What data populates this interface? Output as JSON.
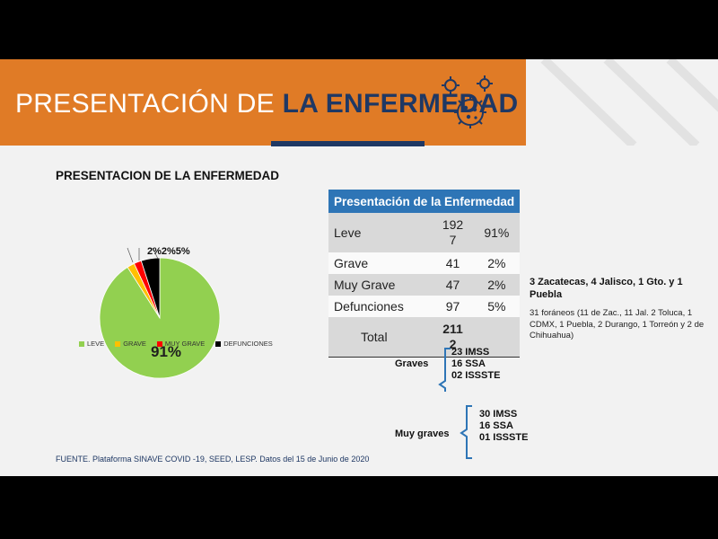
{
  "slide": {
    "title_light": "PRESENTACIÓN DE ",
    "title_bold": "LA ENFERMEDAD",
    "source": "FUENTE. Plataforma SINAVE COVID -19, SEED, LESP. Datos del 15 de Junio de 2020"
  },
  "colors": {
    "banner": "#e07b26",
    "title_bold": "#1f3864",
    "table_header": "#2e75b6",
    "bracket": "#2e75b6",
    "leve": "#92d050",
    "grave": "#ffc000",
    "muy_grave": "#ff0000",
    "defunciones": "#000000"
  },
  "icons": {
    "virus": "virus-icon"
  },
  "chart_data": {
    "type": "pie",
    "title": "PRESENTACION DE LA ENFERMEDAD",
    "categories": [
      "LEVE",
      "GRAVE",
      "MUY GRAVE",
      "DEFUNCIONES"
    ],
    "values": [
      91,
      2,
      2,
      5
    ],
    "data_labels": [
      "91%",
      "2%",
      "2%",
      "5%"
    ],
    "top_label": "2%2%5%",
    "legend_position": "bottom"
  },
  "table": {
    "header": "Presentación de la Enfermedad",
    "rows": [
      {
        "label": "Leve",
        "count": "192 7",
        "count_a": "192",
        "count_b": "7",
        "pct": "91%"
      },
      {
        "label": "Grave",
        "count": "41",
        "pct": "2%"
      },
      {
        "label": "Muy Grave",
        "count": "47",
        "pct": "2%"
      },
      {
        "label": "Defunciones",
        "count": "97",
        "pct": "5%"
      }
    ],
    "total_label": "Total",
    "total_a": "211",
    "total_b": "2"
  },
  "notes": {
    "bold": "3 Zacatecas, 4  Jalisco, 1 Gto. y 1 Puebla",
    "small": "31 foráneos (11 de Zac., 11 Jal. 2 Toluca, 1 CDMX, 1 Puebla, 2 Durango, 1 Torreón y 2 de Chihuahua)"
  },
  "graves": {
    "label": "Graves",
    "lines": [
      "23  IMSS",
      "16 SSA",
      "02 ISSSTE"
    ]
  },
  "muy_graves": {
    "label": "Muy graves",
    "lines": [
      "30 IMSS",
      "16 SSA",
      "01 ISSSTE"
    ]
  }
}
